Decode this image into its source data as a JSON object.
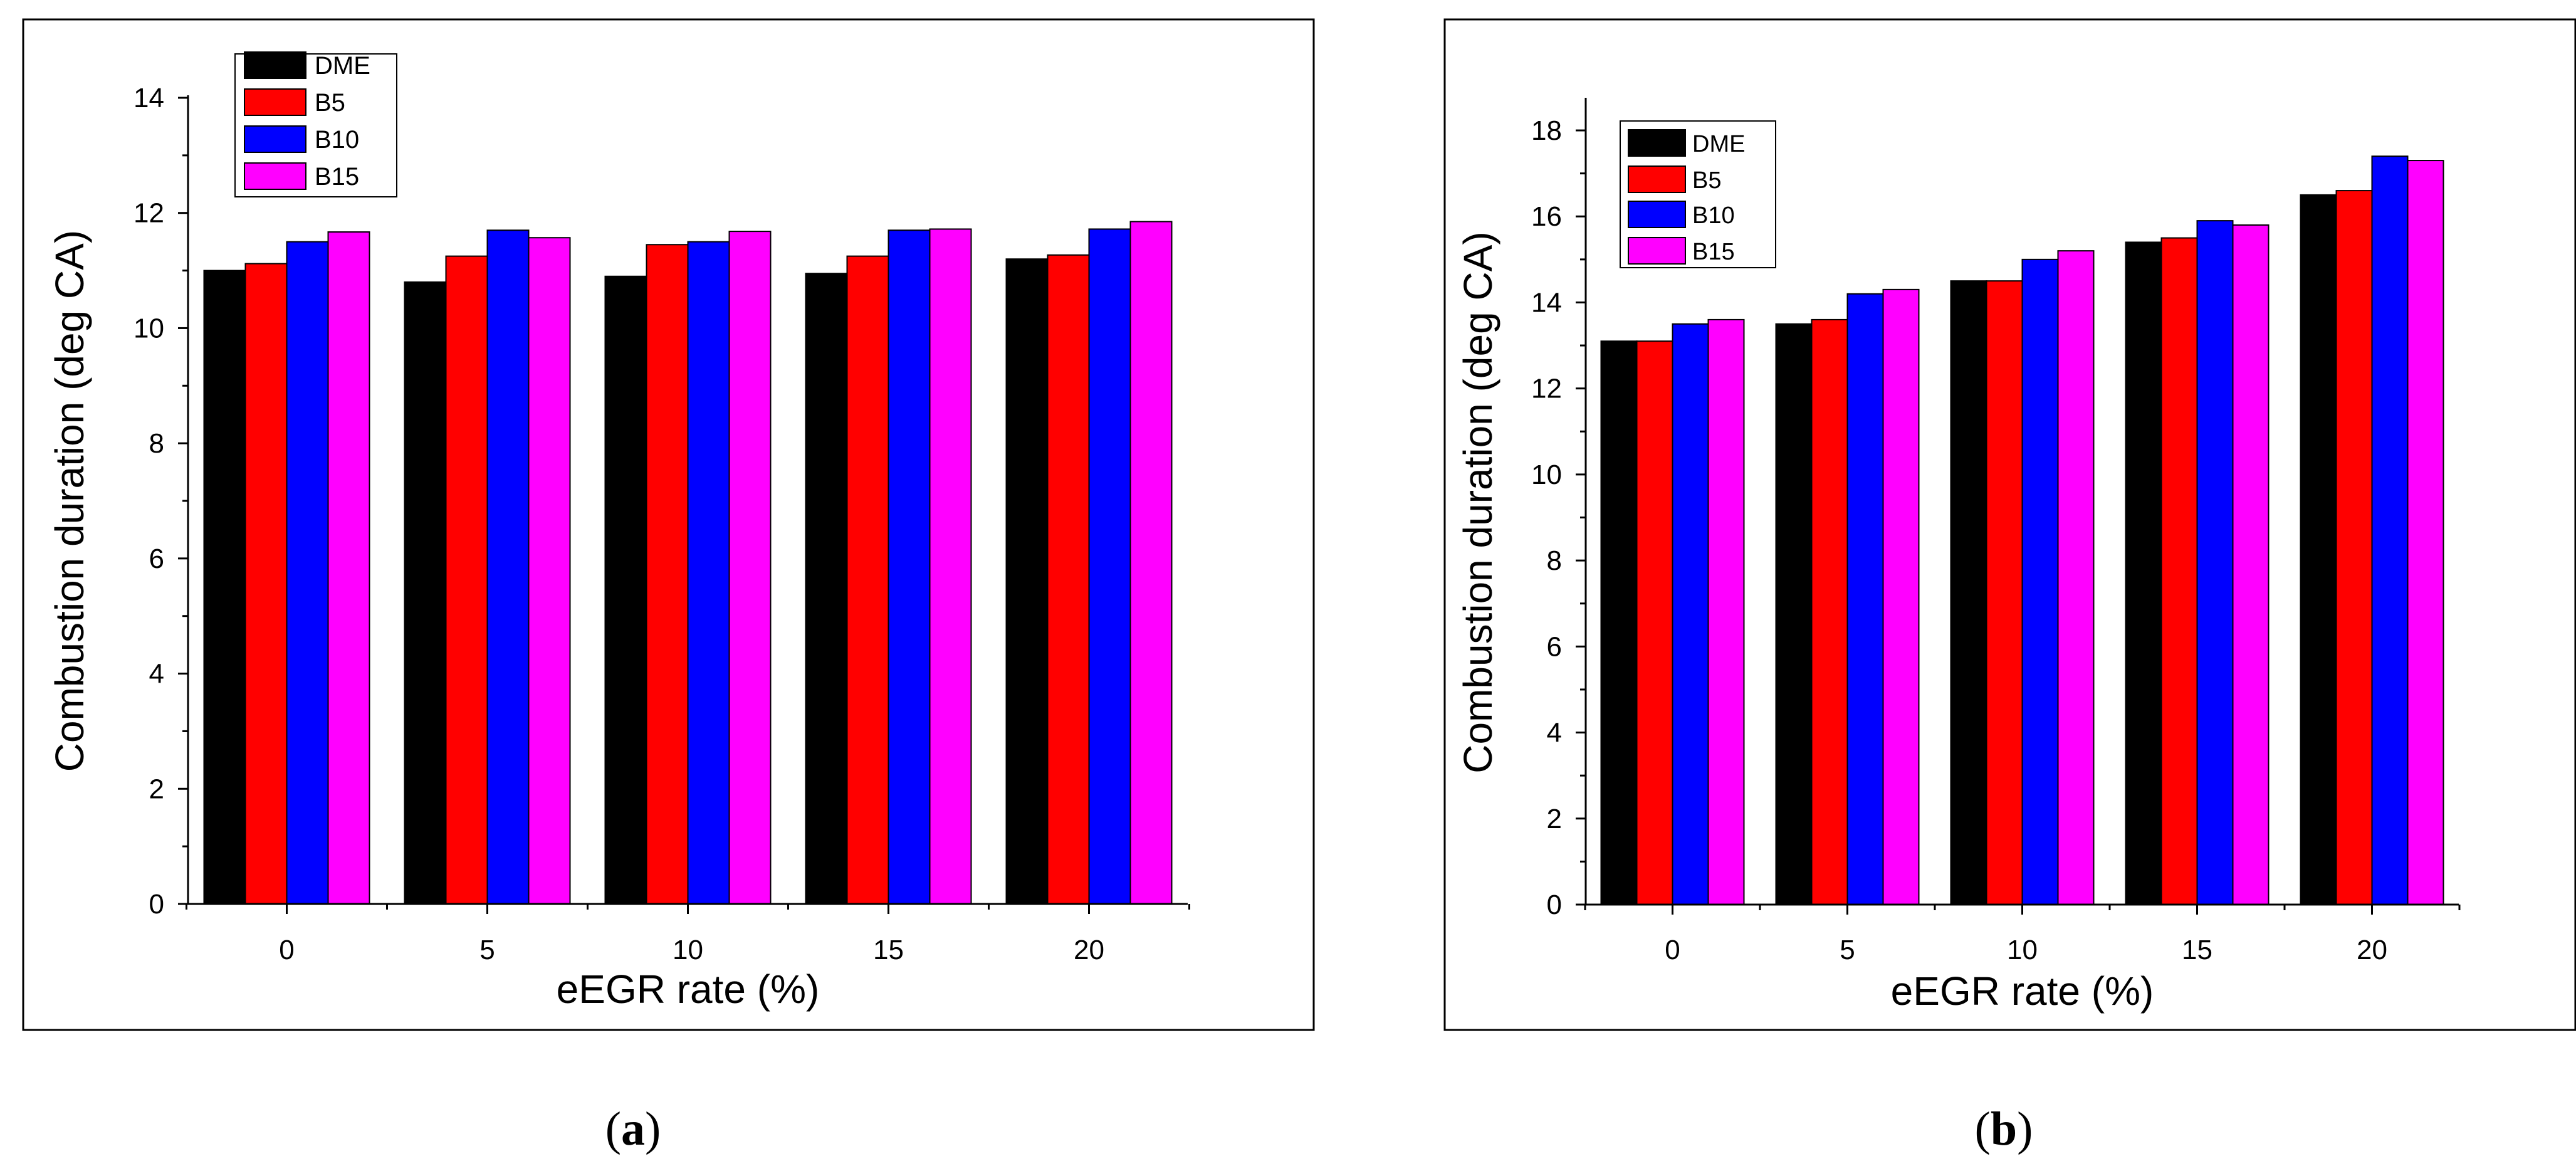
{
  "figure": {
    "panels": [
      {
        "label_open": "(",
        "label_letter": "a",
        "label_close": ")"
      },
      {
        "label_open": "(",
        "label_letter": "b",
        "label_close": ")"
      }
    ]
  },
  "colors": {
    "DME": "#000000",
    "B5": "#ff0000",
    "B10": "#0000ff",
    "B15": "#ff00ff",
    "axis": "#000000",
    "frame": "#000000"
  },
  "chart_data": [
    {
      "type": "bar",
      "title": "",
      "xlabel": "eEGR rate (%)",
      "ylabel": "Combustion duration (deg CA)",
      "categories": [
        "0",
        "5",
        "10",
        "15",
        "20"
      ],
      "ylim": [
        0,
        14
      ],
      "yticks": [
        "0",
        "2",
        "4",
        "6",
        "8",
        "10",
        "12",
        "14"
      ],
      "grid": false,
      "legend": "top-left",
      "series": [
        {
          "name": "DME",
          "values": [
            11.0,
            10.8,
            10.9,
            10.95,
            11.2
          ]
        },
        {
          "name": "B5",
          "values": [
            11.12,
            11.25,
            11.45,
            11.25,
            11.27
          ]
        },
        {
          "name": "B10",
          "values": [
            11.5,
            11.7,
            11.5,
            11.7,
            11.72
          ]
        },
        {
          "name": "B15",
          "values": [
            11.67,
            11.57,
            11.68,
            11.72,
            11.85
          ]
        }
      ]
    },
    {
      "type": "bar",
      "title": "",
      "xlabel": "eEGR rate (%)",
      "ylabel": "Combustion duration (deg CA)",
      "categories": [
        "0",
        "5",
        "10",
        "15",
        "20"
      ],
      "ylim": [
        0,
        18.7
      ],
      "yticks": [
        "0",
        "2",
        "4",
        "6",
        "8",
        "10",
        "12",
        "14",
        "16",
        "18"
      ],
      "grid": false,
      "legend": "top-left",
      "series": [
        {
          "name": "DME",
          "values": [
            13.1,
            13.5,
            14.5,
            15.4,
            16.5
          ]
        },
        {
          "name": "B5",
          "values": [
            13.1,
            13.6,
            14.5,
            15.5,
            16.6
          ]
        },
        {
          "name": "B10",
          "values": [
            13.5,
            14.2,
            15.0,
            15.9,
            17.4
          ]
        },
        {
          "name": "B15",
          "values": [
            13.6,
            14.3,
            15.2,
            15.8,
            17.3
          ]
        }
      ]
    }
  ]
}
